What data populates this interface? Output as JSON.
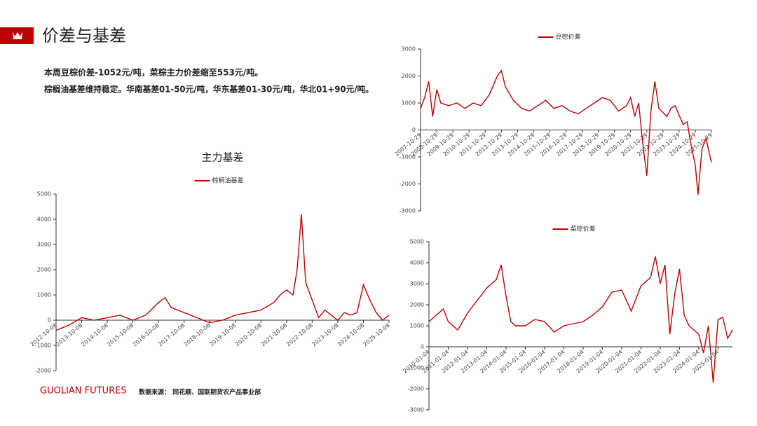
{
  "header": {
    "title": "价差与基差"
  },
  "summary": {
    "lines": [
      "本周豆棕价差-1052元/吨，菜棕主力价差缩至553元/吨。",
      "棕榈油基差维持稳定。华南基差01-50元/吨，华东基差01-30元/吨，华北01+90元/吨。"
    ]
  },
  "footer": {
    "brand": "GUOLIAN FUTURES",
    "source": "数据来源： 同花顺、国联期货农产品事业部"
  },
  "chart_data": [
    {
      "type": "line",
      "title": "主力基差",
      "grid": false,
      "legend": "top",
      "x": [
        "2012-10-08",
        "2013-04-08",
        "2013-10-08",
        "2014-04-08",
        "2014-10-08",
        "2015-04-08",
        "2015-10-08",
        "2016-04-08",
        "2016-10-08",
        "2017-01-08",
        "2017-04-08",
        "2017-10-08",
        "2018-04-08",
        "2018-10-08",
        "2019-04-08",
        "2019-10-08",
        "2020-04-08",
        "2020-10-08",
        "2021-04-08",
        "2021-07-08",
        "2021-10-08",
        "2022-01-08",
        "2022-03-08",
        "2022-05-08",
        "2022-07-08",
        "2022-10-08",
        "2023-01-08",
        "2023-04-08",
        "2023-07-08",
        "2023-10-08",
        "2024-01-08",
        "2024-04-08",
        "2024-07-08",
        "2024-10-08",
        "2025-01-08",
        "2025-04-08",
        "2025-07-08",
        "2025-10-08"
      ],
      "series": [
        {
          "name": "棕榈油基差",
          "color": "#c00000",
          "values": [
            -400,
            -200,
            100,
            0,
            100,
            200,
            0,
            200,
            700,
            900,
            500,
            300,
            100,
            -100,
            0,
            200,
            300,
            400,
            700,
            1000,
            1200,
            1000,
            2000,
            4200,
            1500,
            800,
            100,
            400,
            200,
            0,
            300,
            200,
            300,
            1400,
            800,
            300,
            0,
            200
          ]
        }
      ],
      "xlim": [
        "2012-10-08",
        "2025-10-08"
      ],
      "ylim": [
        -2000,
        5000
      ],
      "xticks": [
        "2012-10-08",
        "2013-10-08",
        "2014-10-08",
        "2015-10-08",
        "2016-10-08",
        "2017-10-08",
        "2018-10-08",
        "2019-10-08",
        "2020-10-08",
        "2021-10-08",
        "2022-10-08",
        "2023-10-08",
        "2024-10-08",
        "2025-10-08"
      ],
      "yticks": [
        -2000,
        -1000,
        0,
        1000,
        2000,
        3000,
        4000,
        5000
      ]
    },
    {
      "type": "line",
      "grid": false,
      "legend": "top",
      "x": [
        "2007-10-29",
        "2008-01-29",
        "2008-04-29",
        "2008-07-29",
        "2008-10-29",
        "2009-01-29",
        "2009-07-29",
        "2010-01-29",
        "2010-07-29",
        "2011-01-29",
        "2011-07-29",
        "2012-01-29",
        "2012-07-29",
        "2012-10-29",
        "2013-01-29",
        "2013-07-29",
        "2014-01-29",
        "2014-07-29",
        "2015-01-29",
        "2015-07-29",
        "2016-01-29",
        "2016-07-29",
        "2017-01-29",
        "2017-07-29",
        "2018-01-29",
        "2018-07-29",
        "2019-01-29",
        "2019-07-29",
        "2020-01-29",
        "2020-07-29",
        "2020-10-29",
        "2021-01-29",
        "2021-04-29",
        "2021-07-29",
        "2021-10-29",
        "2022-01-29",
        "2022-04-29",
        "2022-07-29",
        "2023-01-29",
        "2023-04-29",
        "2023-07-29",
        "2024-01-29",
        "2024-04-29",
        "2024-07-29",
        "2024-10-29",
        "2024-12-29",
        "2025-03-29",
        "2025-06-29",
        "2025-09-29",
        "2025-10-29"
      ],
      "series": [
        {
          "name": "豆棕价差",
          "color": "#c00000",
          "values": [
            800,
            1200,
            1800,
            500,
            1500,
            1000,
            900,
            1000,
            800,
            1000,
            900,
            1300,
            2000,
            2200,
            1600,
            1100,
            800,
            700,
            900,
            1100,
            800,
            900,
            700,
            600,
            800,
            1000,
            1200,
            1100,
            700,
            900,
            1200,
            500,
            1000,
            -500,
            -1700,
            700,
            1800,
            800,
            500,
            800,
            900,
            200,
            300,
            -600,
            -1300,
            -2400,
            -700,
            -300,
            -1000,
            -1200
          ]
        }
      ],
      "xlim": [
        "2007-10-29",
        "2025-10-29"
      ],
      "ylim": [
        -3000,
        3000
      ],
      "xticks": [
        "2007-10-29",
        "2008-10-29",
        "2009-10-29",
        "2010-10-29",
        "2011-10-29",
        "2012-10-29",
        "2013-10-29",
        "2014-10-29",
        "2015-10-29",
        "2016-10-29",
        "2017-10-29",
        "2018-10-29",
        "2019-10-29",
        "2020-10-29",
        "2021-10-29",
        "2022-10-29",
        "2023-10-29",
        "2024-10-29",
        "2025-10-29"
      ],
      "yticks": [
        -3000,
        -2000,
        -1000,
        0,
        1000,
        2000,
        3000
      ]
    },
    {
      "type": "line",
      "grid": false,
      "legend": "top",
      "x": [
        "2010-01-04",
        "2010-07-04",
        "2010-10-04",
        "2011-01-04",
        "2011-07-04",
        "2011-10-04",
        "2012-01-04",
        "2012-07-04",
        "2013-01-04",
        "2013-07-04",
        "2013-10-04",
        "2014-01-04",
        "2014-04-04",
        "2014-07-04",
        "2015-01-04",
        "2015-07-04",
        "2016-01-04",
        "2016-07-04",
        "2017-01-04",
        "2017-07-04",
        "2018-01-04",
        "2018-07-04",
        "2019-01-04",
        "2019-07-04",
        "2020-01-04",
        "2020-07-04",
        "2021-01-04",
        "2021-07-04",
        "2021-10-04",
        "2022-01-04",
        "2022-04-04",
        "2022-07-04",
        "2022-10-04",
        "2023-01-04",
        "2023-04-04",
        "2023-07-04",
        "2024-01-04",
        "2024-04-04",
        "2024-07-04",
        "2024-10-04",
        "2025-01-04",
        "2025-04-04",
        "2025-07-04",
        "2025-10-04"
      ],
      "series": [
        {
          "name": "菜棕价差",
          "color": "#c00000",
          "values": [
            1200,
            1600,
            1800,
            1200,
            800,
            1200,
            1600,
            2200,
            2800,
            3200,
            3900,
            2400,
            1200,
            1000,
            1000,
            1300,
            1200,
            700,
            1000,
            1100,
            1200,
            1500,
            1900,
            2600,
            2700,
            1700,
            2900,
            3300,
            4300,
            3000,
            3900,
            600,
            2500,
            3700,
            1500,
            1000,
            600,
            -300,
            1000,
            -1700,
            1300,
            1400,
            400,
            800
          ]
        }
      ],
      "xlim": [
        "2010-01-04",
        "2025-10-04"
      ],
      "ylim": [
        -3000,
        5000
      ],
      "xticks": [
        "2010-01-04",
        "2011-01-04",
        "2012-01-04",
        "2013-01-04",
        "2014-01-04",
        "2015-01-04",
        "2016-01-04",
        "2017-01-04",
        "2018-01-04",
        "2019-01-04",
        "2020-01-04",
        "2021-01-04",
        "2022-01-04",
        "2023-01-04",
        "2024-01-04",
        "2025-01-04"
      ],
      "yticks": [
        -3000,
        -2000,
        -1000,
        0,
        1000,
        2000,
        3000,
        4000,
        5000
      ]
    }
  ]
}
